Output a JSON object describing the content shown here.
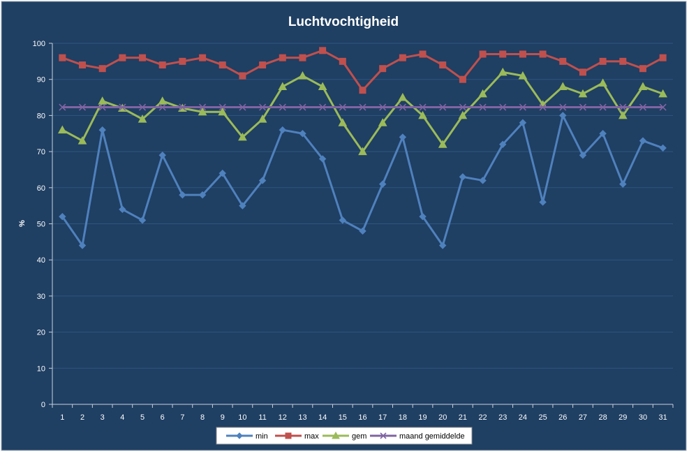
{
  "chart_data": {
    "type": "line",
    "title": "Luchtvochtigheid",
    "xlabel": "",
    "ylabel": "%",
    "ylim": [
      0,
      100
    ],
    "yticks": [
      0,
      10,
      20,
      30,
      40,
      50,
      60,
      70,
      80,
      90,
      100
    ],
    "grid": "horizontal",
    "legend": "bottom",
    "categories": [
      "1",
      "2",
      "3",
      "4",
      "5",
      "6",
      "7",
      "8",
      "9",
      "10",
      "11",
      "12",
      "13",
      "14",
      "15",
      "16",
      "17",
      "18",
      "19",
      "20",
      "21",
      "22",
      "23",
      "24",
      "25",
      "26",
      "27",
      "28",
      "29",
      "30",
      "31"
    ],
    "series": [
      {
        "name": "min",
        "color": "#4f81bd",
        "marker": "diamond",
        "values": [
          52,
          44,
          76,
          54,
          51,
          69,
          58,
          58,
          64,
          55,
          62,
          76,
          75,
          68,
          51,
          48,
          61,
          74,
          52,
          44,
          63,
          62,
          72,
          78,
          56,
          80,
          69,
          75,
          61,
          73,
          71
        ]
      },
      {
        "name": "max",
        "color": "#c0504d",
        "marker": "square",
        "values": [
          96,
          94,
          93,
          96,
          96,
          94,
          95,
          96,
          94,
          91,
          94,
          96,
          96,
          98,
          95,
          87,
          93,
          96,
          97,
          94,
          90,
          97,
          97,
          97,
          97,
          95,
          92,
          95,
          95,
          93,
          96
        ]
      },
      {
        "name": "gem",
        "color": "#9bbb59",
        "marker": "triangle",
        "values": [
          76,
          73,
          84,
          82,
          79,
          84,
          82,
          81,
          81,
          74,
          79,
          88,
          91,
          88,
          78,
          70,
          78,
          85,
          80,
          72,
          80,
          86,
          92,
          91,
          83,
          88,
          86,
          89,
          80,
          88,
          86
        ]
      },
      {
        "name": "maand gemiddelde",
        "color": "#8064a2",
        "marker": "x",
        "values": [
          82.3,
          82.3,
          82.3,
          82.3,
          82.3,
          82.3,
          82.3,
          82.3,
          82.3,
          82.3,
          82.3,
          82.3,
          82.3,
          82.3,
          82.3,
          82.3,
          82.3,
          82.3,
          82.3,
          82.3,
          82.3,
          82.3,
          82.3,
          82.3,
          82.3,
          82.3,
          82.3,
          82.3,
          82.3,
          82.3,
          82.3
        ]
      }
    ]
  },
  "colors": {
    "background": "#1f3f63",
    "gridline": "#2f5780",
    "axis": "#c8d0dc",
    "text": "#ffffff"
  }
}
